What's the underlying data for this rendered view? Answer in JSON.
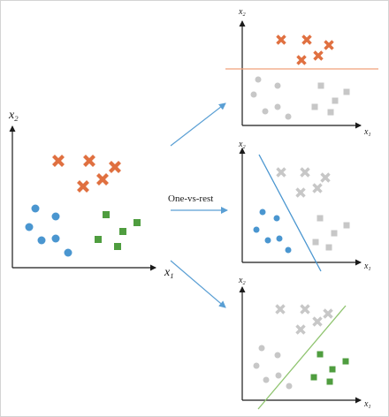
{
  "caption": "One-vs-rest",
  "axes": {
    "y_symbol": "x",
    "y_subscript": "2",
    "x_symbol": "x",
    "x_subscript": "1"
  },
  "colors": {
    "cross": "#e07040",
    "circle": "#4a96d0",
    "square": "#4f9d3f",
    "inactive": "#c7c7c7",
    "line_cross": "#f0a17a",
    "line_circle": "#4a96d0",
    "line_square": "#8fc46f",
    "arrow": "#5a9fd4",
    "axis": "#1a1a1a"
  },
  "classes": [
    "cross",
    "circle",
    "square"
  ],
  "panels": [
    {
      "name": "main-plot",
      "role": "all classes"
    },
    {
      "name": "cross-vs-rest",
      "role": "cross"
    },
    {
      "name": "circle-vs-rest",
      "role": "circle"
    },
    {
      "name": "square-vs-rest",
      "role": "square"
    }
  ]
}
